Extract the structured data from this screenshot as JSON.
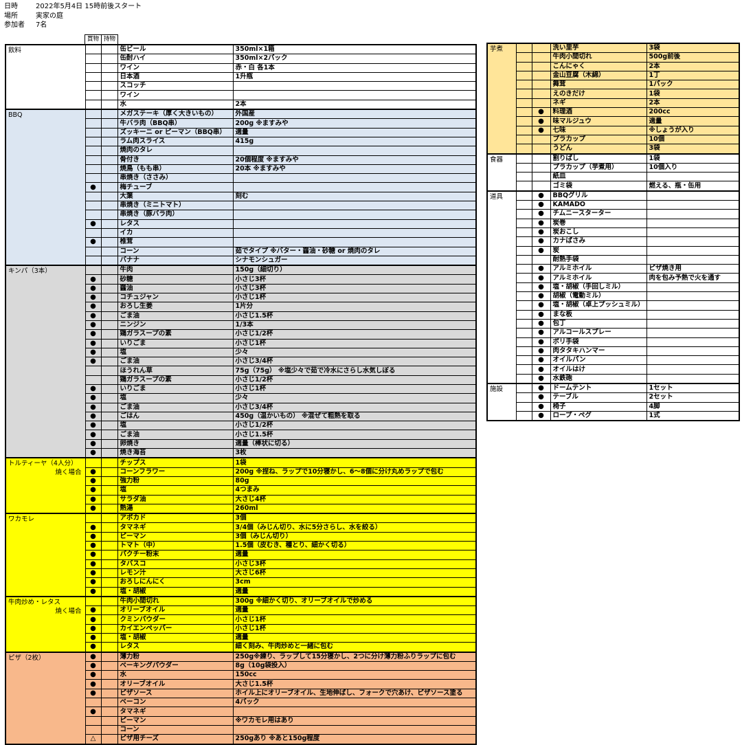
{
  "header": {
    "date_label": "日時",
    "date_value": "2022年5月4日 15時前後スタート",
    "place_label": "場所",
    "place_value": "実家の庭",
    "people_label": "参加者",
    "people_value": "7名"
  },
  "columns": {
    "buy": "買物",
    "bring": "持物"
  },
  "colors": {
    "drinks": "#ffffff",
    "bbq": "#dce6f2",
    "kimbap": "#d9d9d9",
    "yellow": "#ffff00",
    "pizza": "#f8b88b",
    "imoni": "#ffe599",
    "white": "#ffffff"
  },
  "left_sections": [
    {
      "name": "飲料",
      "sub": "",
      "color": "drinks",
      "rows": [
        {
          "buy": "",
          "bring": "",
          "item": "缶ビール",
          "note": "350ml×1箱"
        },
        {
          "buy": "",
          "bring": "",
          "item": "缶酎ハイ",
          "note": "350ml×2パック"
        },
        {
          "buy": "",
          "bring": "",
          "item": "ワイン",
          "note": "赤・白 各1本"
        },
        {
          "buy": "",
          "bring": "",
          "item": "日本酒",
          "note": "1升瓶"
        },
        {
          "buy": "",
          "bring": "",
          "item": "スコッチ",
          "note": ""
        },
        {
          "buy": "",
          "bring": "",
          "item": "ワイン",
          "note": ""
        },
        {
          "buy": "",
          "bring": "",
          "item": "水",
          "note": "2本"
        }
      ]
    },
    {
      "name": "BBQ",
      "sub": "",
      "color": "bbq",
      "rows": [
        {
          "buy": "",
          "bring": "",
          "item": "メガステーキ（厚く大きいもの）",
          "note": "外国産"
        },
        {
          "buy": "",
          "bring": "",
          "item": "牛バラ肉（BBQ串）",
          "note": "200g ※ますみや"
        },
        {
          "buy": "",
          "bring": "",
          "item": "ズッキーニ or ピーマン（BBQ串）",
          "note": "適量"
        },
        {
          "buy": "",
          "bring": "",
          "item": "ラム肉スライス",
          "note": "415g"
        },
        {
          "buy": "",
          "bring": "",
          "item": "焼肉のタレ",
          "note": ""
        },
        {
          "buy": "",
          "bring": "",
          "item": "骨付き",
          "note": "20個程度 ※ますみや"
        },
        {
          "buy": "",
          "bring": "",
          "item": "焼鳥（もも串）",
          "note": "20本 ※ますみや"
        },
        {
          "buy": "",
          "bring": "",
          "item": "串焼き（ささみ）",
          "note": ""
        },
        {
          "buy": "●",
          "bring": "",
          "item": "梅チューブ",
          "note": ""
        },
        {
          "buy": "",
          "bring": "",
          "item": "大葉",
          "note": "刻む"
        },
        {
          "buy": "",
          "bring": "",
          "item": "串焼き（ミニトマト）",
          "note": ""
        },
        {
          "buy": "",
          "bring": "",
          "item": "串焼き（豚バラ肉）",
          "note": ""
        },
        {
          "buy": "●",
          "bring": "",
          "item": "レタス",
          "note": ""
        },
        {
          "buy": "",
          "bring": "",
          "item": "イカ",
          "note": ""
        },
        {
          "buy": "●",
          "bring": "",
          "item": "椎茸",
          "note": ""
        },
        {
          "buy": "",
          "bring": "",
          "item": "コーン",
          "note": "茹でタイプ ※バター・醤油・砂糖 or 焼肉のタレ"
        },
        {
          "buy": "",
          "bring": "",
          "item": "バナナ",
          "note": "シナモンシュガー"
        }
      ]
    },
    {
      "name": "キンパ（3本）",
      "sub": "",
      "color": "kimbap",
      "rows": [
        {
          "buy": "",
          "bring": "",
          "item": "牛肉",
          "note": "150g（細切り）"
        },
        {
          "buy": "●",
          "bring": "",
          "item": "砂糖",
          "note": "小さじ3杯"
        },
        {
          "buy": "●",
          "bring": "",
          "item": "醤油",
          "note": "小さじ3杯"
        },
        {
          "buy": "●",
          "bring": "",
          "item": "コチュジャン",
          "note": "小さじ1杯"
        },
        {
          "buy": "●",
          "bring": "",
          "item": "おろし生姜",
          "note": "1片分"
        },
        {
          "buy": "●",
          "bring": "",
          "item": "ごま油",
          "note": "小さじ1.5杯"
        },
        {
          "buy": "●",
          "bring": "",
          "item": "ニンジン",
          "note": "1/3本"
        },
        {
          "buy": "●",
          "bring": "",
          "item": "鶏ガラスープの素",
          "note": "小さじ1/2杯"
        },
        {
          "buy": "●",
          "bring": "",
          "item": "いりごま",
          "note": "小さじ1杯"
        },
        {
          "buy": "●",
          "bring": "",
          "item": "塩",
          "note": "少々"
        },
        {
          "buy": "●",
          "bring": "",
          "item": "ごま油",
          "note": "小さじ3/4杯"
        },
        {
          "buy": "",
          "bring": "",
          "item": "ほうれん草",
          "note": "75g（75g） ※塩少々で茹で冷水にさらし水気しぼる"
        },
        {
          "buy": "",
          "bring": "",
          "item": "鶏ガラスープの素",
          "note": "小さじ1/2杯"
        },
        {
          "buy": "●",
          "bring": "",
          "item": "いりごま",
          "note": "小さじ1杯"
        },
        {
          "buy": "●",
          "bring": "",
          "item": "塩",
          "note": "少々"
        },
        {
          "buy": "●",
          "bring": "",
          "item": "ごま油",
          "note": "小さじ3/4杯"
        },
        {
          "buy": "●",
          "bring": "",
          "item": "ごはん",
          "note": "450g（温かいもの） ※混ぜて粗熱を取る"
        },
        {
          "buy": "●",
          "bring": "",
          "item": "塩",
          "note": "小さじ1/2杯"
        },
        {
          "buy": "●",
          "bring": "",
          "item": "ごま油",
          "note": "小さじ1.5杯"
        },
        {
          "buy": "●",
          "bring": "",
          "item": "卵焼き",
          "note": "適量（棒状に切る）"
        },
        {
          "buy": "●",
          "bring": "",
          "item": "焼き海苔",
          "note": "3枚"
        }
      ]
    },
    {
      "name": "トルティーヤ（4人分）",
      "sub": "焼く場合",
      "color": "yellow",
      "rows": [
        {
          "buy": "",
          "bring": "",
          "item": "チップス",
          "note": "1袋"
        },
        {
          "buy": "●",
          "bring": "",
          "item": "コーンフラワー",
          "note": "200g ※捏ね、ラップで10分寝かし、6～8個に分け丸めラップで包む"
        },
        {
          "buy": "●",
          "bring": "",
          "item": "強力粉",
          "note": "80g"
        },
        {
          "buy": "●",
          "bring": "",
          "item": "塩",
          "note": "4つまみ"
        },
        {
          "buy": "●",
          "bring": "",
          "item": "サラダ油",
          "note": "大さじ4杯"
        },
        {
          "buy": "●",
          "bring": "",
          "item": "熱湯",
          "note": "260ml"
        }
      ]
    },
    {
      "name": "ワカモレ",
      "sub": "",
      "color": "yellow",
      "rows": [
        {
          "buy": "",
          "bring": "",
          "item": "アボカド",
          "note": "3個"
        },
        {
          "buy": "●",
          "bring": "",
          "item": "タマネギ",
          "note": "3/4個（みじん切り、水に5分さらし、水を絞る）"
        },
        {
          "buy": "●",
          "bring": "",
          "item": "ピーマン",
          "note": "3個（みじん切り）"
        },
        {
          "buy": "●",
          "bring": "",
          "item": "トマト（中）",
          "note": "1.5個（皮むき、種とり、細かく切る）"
        },
        {
          "buy": "●",
          "bring": "",
          "item": "パクチー粉末",
          "note": "適量"
        },
        {
          "buy": "●",
          "bring": "",
          "item": "タバスコ",
          "note": "小さじ3杯"
        },
        {
          "buy": "●",
          "bring": "",
          "item": "レモン汁",
          "note": "大さじ6杯"
        },
        {
          "buy": "●",
          "bring": "",
          "item": "おろしにんにく",
          "note": "3cm"
        },
        {
          "buy": "●",
          "bring": "",
          "item": "塩・胡椒",
          "note": "適量"
        }
      ]
    },
    {
      "name": "牛肉炒め・レタス",
      "sub": "焼く場合",
      "color": "yellow",
      "rows": [
        {
          "buy": "",
          "bring": "",
          "item": "牛肉小間切れ",
          "note": "300g ※細かく切り、オリーブオイルで炒める"
        },
        {
          "buy": "●",
          "bring": "",
          "item": "オリーブオイル",
          "note": "適量"
        },
        {
          "buy": "●",
          "bring": "",
          "item": "クミンパウダー",
          "note": "小さじ1杯"
        },
        {
          "buy": "●",
          "bring": "",
          "item": "カイエンペッパー",
          "note": "小さじ1杯"
        },
        {
          "buy": "●",
          "bring": "",
          "item": "塩・胡椒",
          "note": "適量"
        },
        {
          "buy": "●",
          "bring": "",
          "item": "レタス",
          "note": "細く刻み、牛肉炒めと一緒に包む"
        }
      ]
    },
    {
      "name": "ピザ（2枚）",
      "sub": "",
      "color": "pizza",
      "rows": [
        {
          "buy": "●",
          "bring": "",
          "item": "薄力粉",
          "note": "250g※練り、ラップして15分寝かし、2つに分け薄力粉ふりラップに包む"
        },
        {
          "buy": "●",
          "bring": "",
          "item": "ベーキングパウダー",
          "note": "8g（10g袋投入）"
        },
        {
          "buy": "●",
          "bring": "",
          "item": "水",
          "note": "150cc"
        },
        {
          "buy": "●",
          "bring": "",
          "item": "オリーブオイル",
          "note": "大さじ1.5杯"
        },
        {
          "buy": "●",
          "bring": "",
          "item": "ピザソース",
          "note": "ホイル上にオリーブオイル、生地伸ばし、フォークで穴あけ、ピザソース塗る"
        },
        {
          "buy": "",
          "bring": "",
          "item": "ベーコン",
          "note": "4パック"
        },
        {
          "buy": "●",
          "bring": "",
          "item": "タマネギ",
          "note": ""
        },
        {
          "buy": "",
          "bring": "",
          "item": "ピーマン",
          "note": "※ワカモレ用はあり"
        },
        {
          "buy": "",
          "bring": "",
          "item": "コーン",
          "note": ""
        },
        {
          "buy": "△",
          "bring": "",
          "item": "ピザ用チーズ",
          "note": "250gあり ※あと150g程度"
        }
      ]
    }
  ],
  "right_sections": [
    {
      "name": "芋煮",
      "color": "imoni",
      "rows": [
        {
          "buy": "",
          "bring": "",
          "item": "洗い里芋",
          "note": "3袋"
        },
        {
          "buy": "",
          "bring": "",
          "item": "牛肉小間切れ",
          "note": "500g前後"
        },
        {
          "buy": "",
          "bring": "",
          "item": "こんにゃく",
          "note": "2本"
        },
        {
          "buy": "",
          "bring": "",
          "item": "金山豆腐（木綿）",
          "note": "1丁"
        },
        {
          "buy": "",
          "bring": "",
          "item": "舞茸",
          "note": "1パック"
        },
        {
          "buy": "",
          "bring": "",
          "item": "えのきだけ",
          "note": "1袋"
        },
        {
          "buy": "",
          "bring": "",
          "item": "ネギ",
          "note": "2本"
        },
        {
          "buy": "",
          "bring": "●",
          "item": "料理酒",
          "note": "200cc"
        },
        {
          "buy": "",
          "bring": "●",
          "item": "味マルジュウ",
          "note": "適量"
        },
        {
          "buy": "",
          "bring": "●",
          "item": "七味",
          "note": "※しょうが入り"
        },
        {
          "buy": "",
          "bring": "",
          "item": "プラカップ",
          "note": "10個"
        },
        {
          "buy": "",
          "bring": "",
          "item": "うどん",
          "note": "3袋"
        }
      ]
    },
    {
      "name": "食器",
      "color": "white",
      "rows": [
        {
          "buy": "",
          "bring": "",
          "item": "割りばし",
          "note": "1袋"
        },
        {
          "buy": "",
          "bring": "",
          "item": "プラカップ（芋煮用）",
          "note": "10個入り"
        },
        {
          "buy": "",
          "bring": "",
          "item": "紙皿",
          "note": ""
        },
        {
          "buy": "",
          "bring": "",
          "item": "ゴミ袋",
          "note": "燃える、瓶・缶用"
        }
      ]
    },
    {
      "name": "道具",
      "color": "white",
      "rows": [
        {
          "buy": "",
          "bring": "●",
          "item": "BBQグリル",
          "note": ""
        },
        {
          "buy": "",
          "bring": "●",
          "item": "KAMADO",
          "note": ""
        },
        {
          "buy": "",
          "bring": "●",
          "item": "チムニースターター",
          "note": ""
        },
        {
          "buy": "",
          "bring": "●",
          "item": "炭巻",
          "note": ""
        },
        {
          "buy": "",
          "bring": "●",
          "item": "炭おこし",
          "note": ""
        },
        {
          "buy": "",
          "bring": "●",
          "item": "カナばさみ",
          "note": ""
        },
        {
          "buy": "",
          "bring": "●",
          "item": "炭",
          "note": ""
        },
        {
          "buy": "",
          "bring": "",
          "item": "耐熱手袋",
          "note": ""
        },
        {
          "buy": "",
          "bring": "●",
          "item": "アルミホイル",
          "note": "ピザ焼き用"
        },
        {
          "buy": "",
          "bring": "●",
          "item": "アルミホイル",
          "note": "肉を包み予熱で火を通す"
        },
        {
          "buy": "",
          "bring": "●",
          "item": "塩・胡椒（手回しミル）",
          "note": ""
        },
        {
          "buy": "",
          "bring": "●",
          "item": "胡椒（電動ミル）",
          "note": ""
        },
        {
          "buy": "",
          "bring": "●",
          "item": "塩・胡椒（卓上プッシュミル）",
          "note": ""
        },
        {
          "buy": "",
          "bring": "●",
          "item": "まな板",
          "note": ""
        },
        {
          "buy": "",
          "bring": "●",
          "item": "包丁",
          "note": ""
        },
        {
          "buy": "",
          "bring": "●",
          "item": "アルコールスプレー",
          "note": ""
        },
        {
          "buy": "",
          "bring": "●",
          "item": "ポリ手袋",
          "note": ""
        },
        {
          "buy": "",
          "bring": "●",
          "item": "肉タタキハンマー",
          "note": ""
        },
        {
          "buy": "",
          "bring": "●",
          "item": "オイルパン",
          "note": ""
        },
        {
          "buy": "",
          "bring": "●",
          "item": "オイルはけ",
          "note": ""
        },
        {
          "buy": "",
          "bring": "●",
          "item": "水鉄砲",
          "note": ""
        }
      ]
    },
    {
      "name": "施設",
      "color": "white",
      "rows": [
        {
          "buy": "",
          "bring": "●",
          "item": "ドームテント",
          "note": "1セット"
        },
        {
          "buy": "",
          "bring": "●",
          "item": "テーブル",
          "note": "2セット"
        },
        {
          "buy": "",
          "bring": "●",
          "item": "椅子",
          "note": "4脚"
        },
        {
          "buy": "",
          "bring": "●",
          "item": "ロープ・ペグ",
          "note": "1式"
        }
      ]
    }
  ]
}
